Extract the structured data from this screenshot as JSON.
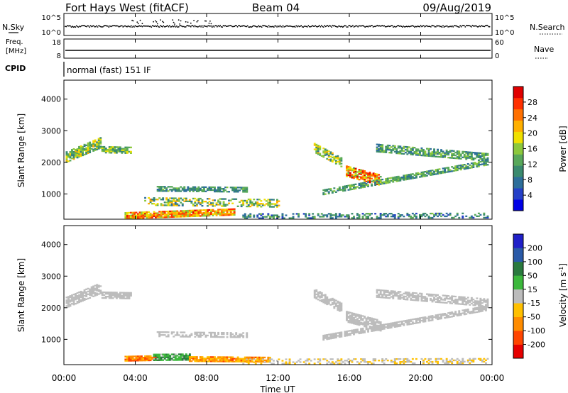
{
  "header": {
    "radar": "Fort Hays West (fitACF)",
    "beam": "Beam 04",
    "date": "09/Aug/2019"
  },
  "top_panels": {
    "nsky_label": "N.Sky",
    "nsearch_label": "N.Search",
    "noise_ticks": [
      "10^5",
      "10^0"
    ],
    "freq_label_1": "Freq.",
    "freq_label_2": "[MHz]",
    "freq_ticks": [
      "18",
      "8"
    ],
    "nave_label": "Nave",
    "nave_ticks": [
      "60",
      "0"
    ],
    "cpid_label": "CPID",
    "cpid_text": "normal (fast) 151 IF"
  },
  "axes": {
    "ylabel": "Slant Range [km]",
    "xlabel": "Time UT",
    "y_ticks": [
      "1000",
      "2000",
      "3000",
      "4000"
    ],
    "x_ticks": [
      "00:00",
      "04:00",
      "08:00",
      "12:00",
      "16:00",
      "20:00",
      "00:00"
    ]
  },
  "colors": {
    "power_scale": [
      "#0000e6",
      "#2540c8",
      "#2d6e9a",
      "#3a8a6e",
      "#58a85a",
      "#8cc83c",
      "#f0e000",
      "#ffb000",
      "#ff7000",
      "#ff3000",
      "#e00000"
    ],
    "velocity_scale": [
      "#e60000",
      "#ff4500",
      "#ff8c00",
      "#ffc000",
      "#bcbcbc",
      "#3cb83c",
      "#2a7a3e",
      "#2a5aa8",
      "#2020c8"
    ]
  },
  "chart_data": [
    {
      "type": "heatmap",
      "name": "power",
      "xlim": [
        0,
        24
      ],
      "ylim": [
        200,
        4600
      ],
      "colorbar": {
        "label": "Power [dB]",
        "ticks": [
          "4",
          "8",
          "12",
          "16",
          "20",
          "24",
          "28"
        ],
        "range": [
          0,
          30
        ]
      },
      "regions": [
        {
          "t": [
            0.1,
            2.1
          ],
          "r_center": [
            2150,
            2620
          ],
          "r_width": 320,
          "vmin": 8,
          "vmax": 20,
          "density": 0.8
        },
        {
          "t": [
            2.1,
            3.8
          ],
          "r_center": [
            2400,
            2380
          ],
          "r_width": 220,
          "vmin": 8,
          "vmax": 18,
          "density": 0.8
        },
        {
          "t": [
            3.4,
            9.5
          ],
          "r_center": [
            300,
            420
          ],
          "r_width": 200,
          "vmin": 14,
          "vmax": 28,
          "density": 0.9
        },
        {
          "t": [
            5.2,
            10.2
          ],
          "r_center": [
            1150,
            1120
          ],
          "r_width": 150,
          "vmin": 6,
          "vmax": 14,
          "density": 0.7
        },
        {
          "t": [
            4.5,
            12.0
          ],
          "r_center": [
            760,
            700
          ],
          "r_width": 260,
          "vmin": 6,
          "vmax": 22,
          "density": 0.45
        },
        {
          "t": [
            14.0,
            15.5
          ],
          "r_center": [
            2450,
            2000
          ],
          "r_width": 300,
          "vmin": 8,
          "vmax": 20,
          "density": 0.7
        },
        {
          "t": [
            15.8,
            17.8
          ],
          "r_center": [
            1700,
            1400
          ],
          "r_width": 320,
          "vmin": 12,
          "vmax": 28,
          "density": 0.8
        },
        {
          "t": [
            14.5,
            23.8
          ],
          "r_center": [
            1050,
            2000
          ],
          "r_width": 170,
          "vmin": 6,
          "vmax": 16,
          "density": 0.75
        },
        {
          "t": [
            17.5,
            23.8
          ],
          "r_center": [
            2450,
            2150
          ],
          "r_width": 260,
          "vmin": 6,
          "vmax": 16,
          "density": 0.7
        },
        {
          "t": [
            10.0,
            23.8
          ],
          "r_center": [
            300,
            320
          ],
          "r_width": 180,
          "vmin": 4,
          "vmax": 14,
          "density": 0.4
        }
      ]
    },
    {
      "type": "heatmap",
      "name": "velocity",
      "xlim": [
        0,
        24
      ],
      "ylim": [
        200,
        4600
      ],
      "colorbar": {
        "label": "Velocity [m s^-1]",
        "ticks": [
          "-200",
          "-100",
          "-50",
          "-15",
          "15",
          "50",
          "100",
          "200"
        ],
        "range": [
          -250,
          250
        ]
      },
      "regions": [
        {
          "t": [
            0.1,
            2.1
          ],
          "r_center": [
            2150,
            2620
          ],
          "r_width": 320,
          "vmin": -12,
          "vmax": 12,
          "density": 0.8
        },
        {
          "t": [
            2.1,
            3.8
          ],
          "r_center": [
            2400,
            2380
          ],
          "r_width": 220,
          "vmin": -12,
          "vmax": 12,
          "density": 0.8
        },
        {
          "t": [
            3.4,
            5.2
          ],
          "r_center": [
            380,
            400
          ],
          "r_width": 160,
          "vmin": -180,
          "vmax": -60,
          "density": 0.9
        },
        {
          "t": [
            5.0,
            7.0
          ],
          "r_center": [
            420,
            430
          ],
          "r_width": 200,
          "vmin": 20,
          "vmax": 120,
          "density": 0.9
        },
        {
          "t": [
            7.0,
            11.5
          ],
          "r_center": [
            380,
            360
          ],
          "r_width": 180,
          "vmin": -150,
          "vmax": -40,
          "density": 0.8
        },
        {
          "t": [
            5.2,
            10.2
          ],
          "r_center": [
            1150,
            1120
          ],
          "r_width": 150,
          "vmin": -12,
          "vmax": 12,
          "density": 0.6
        },
        {
          "t": [
            14.0,
            15.5
          ],
          "r_center": [
            2450,
            2000
          ],
          "r_width": 300,
          "vmin": -12,
          "vmax": 12,
          "density": 0.7
        },
        {
          "t": [
            15.8,
            17.8
          ],
          "r_center": [
            1700,
            1400
          ],
          "r_width": 320,
          "vmin": -12,
          "vmax": 12,
          "density": 0.8
        },
        {
          "t": [
            14.5,
            23.8
          ],
          "r_center": [
            1050,
            2000
          ],
          "r_width": 170,
          "vmin": -12,
          "vmax": 12,
          "density": 0.75
        },
        {
          "t": [
            17.5,
            23.8
          ],
          "r_center": [
            2450,
            2150
          ],
          "r_width": 260,
          "vmin": -12,
          "vmax": 12,
          "density": 0.7
        },
        {
          "t": [
            10.0,
            23.8
          ],
          "r_center": [
            300,
            320
          ],
          "r_width": 180,
          "vmin": -60,
          "vmax": 20,
          "density": 0.4
        }
      ]
    }
  ]
}
